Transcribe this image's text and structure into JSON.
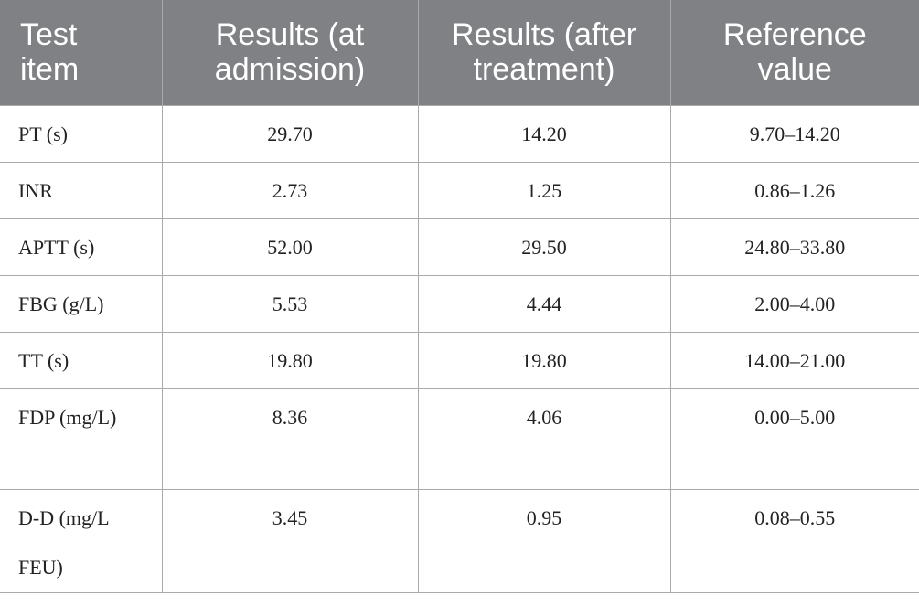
{
  "table": {
    "header": [
      "Test item",
      "Results (at admission)",
      "Results (after treatment)",
      "Reference value"
    ],
    "rows": [
      [
        "PT (s)",
        "29.70",
        "14.20",
        "9.70–14.20"
      ],
      [
        "INR",
        "2.73",
        "1.25",
        "0.86–1.26"
      ],
      [
        "APTT (s)",
        "52.00",
        "29.50",
        "24.80–33.80"
      ],
      [
        "FBG (g/L)",
        "5.53",
        "4.44",
        "2.00–4.00"
      ],
      [
        "TT (s)",
        "19.80",
        "19.80",
        "14.00–21.00"
      ],
      [
        "FDP (mg/L)",
        "8.36",
        "4.06",
        "0.00–5.00"
      ],
      [
        "D-D (mg/L FEU)",
        "3.45",
        "0.95",
        "0.08–0.55"
      ]
    ]
  }
}
